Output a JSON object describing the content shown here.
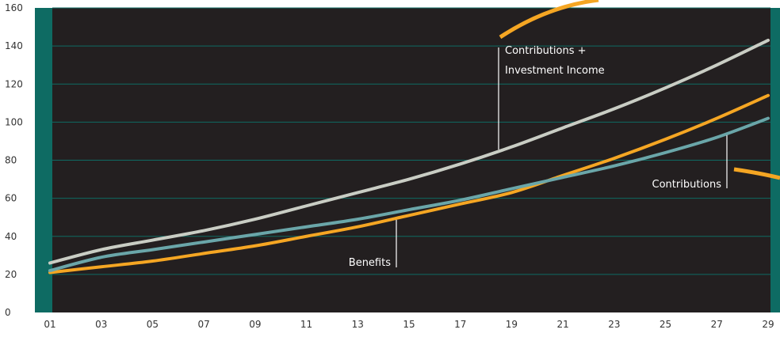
{
  "chart_data": {
    "type": "line",
    "title": "",
    "xlabel": "",
    "ylabel": "",
    "x": [
      "01",
      "03",
      "05",
      "07",
      "09",
      "11",
      "13",
      "15",
      "17",
      "19",
      "21",
      "23",
      "25",
      "27",
      "29"
    ],
    "ylim": [
      0,
      160
    ],
    "yticks": [
      0,
      20,
      40,
      60,
      80,
      100,
      120,
      140,
      160
    ],
    "grid": true,
    "series": [
      {
        "name": "Contributions + Investment Income",
        "values": [
          26,
          33,
          38,
          43,
          49,
          56,
          63,
          70,
          78,
          87,
          97,
          107,
          118,
          130,
          143
        ]
      },
      {
        "name": "Contributions",
        "values": [
          22,
          29,
          33,
          37,
          41,
          45,
          49,
          54,
          59,
          65,
          71,
          77,
          84,
          92,
          102
        ]
      },
      {
        "name": "Benefits",
        "values": [
          21,
          24,
          27,
          31,
          35,
          40,
          45,
          51,
          57,
          63,
          72,
          81,
          91,
          102,
          114
        ]
      }
    ],
    "annotations": [
      {
        "text_lines": [
          "Contributions +",
          "Investment Income"
        ],
        "series": "Contributions + Investment Income"
      },
      {
        "text_lines": [
          "Contributions"
        ],
        "series": "Contributions"
      },
      {
        "text_lines": [
          "Benefits"
        ],
        "series": "Benefits"
      }
    ],
    "colors": {
      "background": "#231f20",
      "gridline": "#0e6b63",
      "edge_bar": "#0e6b63",
      "contrib_invest": "#c9cdc4",
      "contributions": "#6aa6a9",
      "benefits": "#f5a623",
      "leader_line": "#ffffff"
    }
  }
}
